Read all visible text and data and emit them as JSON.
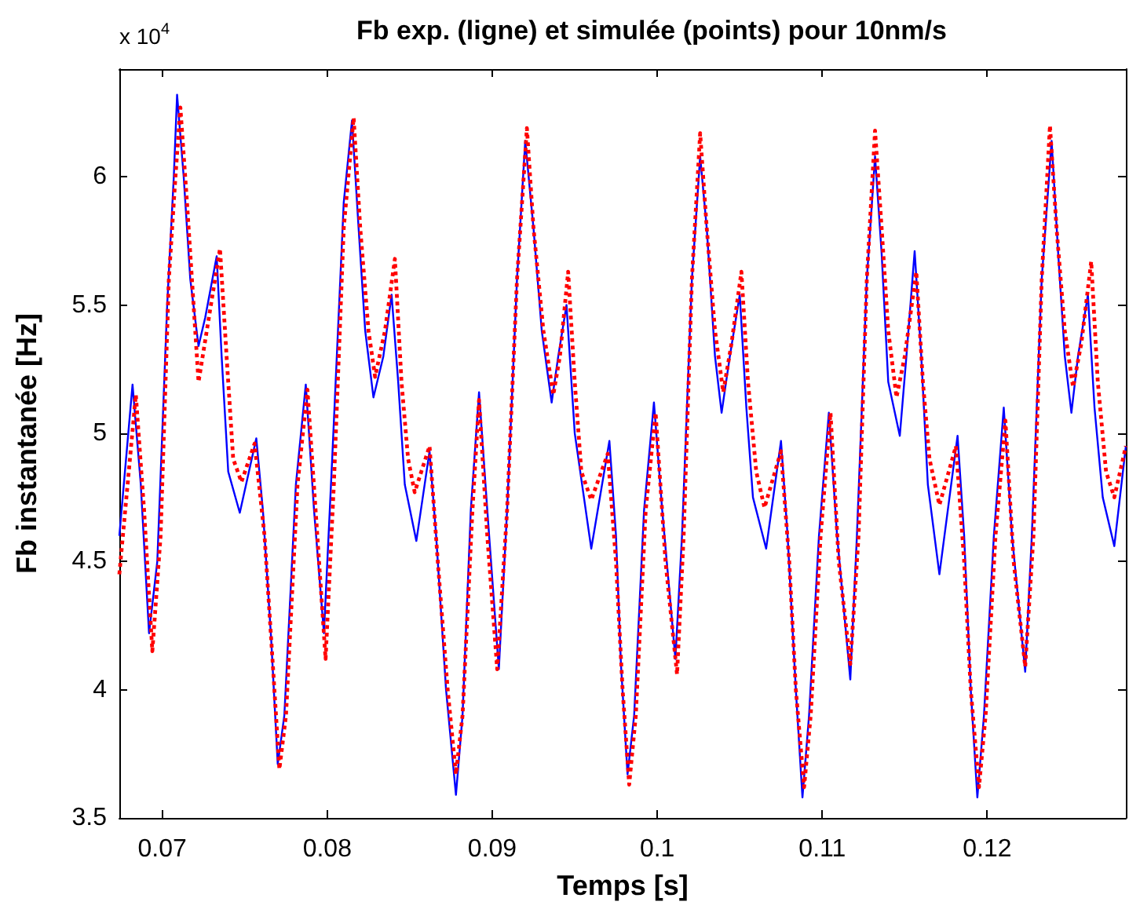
{
  "chart_data": {
    "type": "line",
    "title": "Fb exp. (ligne) et simulée (points) pour 10nm/s",
    "xlabel": "Temps [s]",
    "ylabel": "Fb instantanée [Hz]",
    "annotations": [
      "x 10$^{4}$"
    ],
    "xlim": [
      0.0674,
      0.1284
    ],
    "xticks": [
      0.07,
      0.08,
      0.09,
      0.1,
      0.11,
      0.12
    ],
    "ylim": [
      3.5,
      6.42
    ],
    "yticks": [
      3.5,
      4,
      4.5,
      5,
      5.5,
      6
    ],
    "grid": false,
    "legend": false,
    "marker": "none",
    "series": [
      {
        "color": "#0000ff",
        "line_style": "solid",
        "x": [
          0.0674,
          0.0682,
          0.0687,
          0.0692,
          0.0697,
          0.0703,
          0.0707,
          0.0709,
          0.0713,
          0.0717,
          0.0722,
          0.0726,
          0.0733,
          0.0736,
          0.074,
          0.0747,
          0.0757,
          0.0761,
          0.0766,
          0.077,
          0.0774,
          0.0781,
          0.0787,
          0.0792,
          0.0798,
          0.0803,
          0.081,
          0.0815,
          0.0819,
          0.0823,
          0.0828,
          0.0834,
          0.0839,
          0.0843,
          0.0847,
          0.0854,
          0.0862,
          0.0866,
          0.0872,
          0.0878,
          0.0882,
          0.0887,
          0.0892,
          0.0897,
          0.0904,
          0.0909,
          0.0915,
          0.092,
          0.0925,
          0.093,
          0.0936,
          0.094,
          0.0945,
          0.095,
          0.096,
          0.0971,
          0.0975,
          0.0978,
          0.0982,
          0.0986,
          0.0992,
          0.0998,
          0.1003,
          0.1011,
          0.1015,
          0.1021,
          0.1026,
          0.103,
          0.1035,
          0.1039,
          0.1044,
          0.105,
          0.1054,
          0.1058,
          0.1066,
          0.1075,
          0.1079,
          0.1084,
          0.1088,
          0.1092,
          0.1098,
          0.1104,
          0.1109,
          0.1117,
          0.1121,
          0.1127,
          0.1132,
          0.1136,
          0.114,
          0.1147,
          0.1151,
          0.1156,
          0.116,
          0.1164,
          0.1171,
          0.1182,
          0.1186,
          0.119,
          0.1194,
          0.1198,
          0.1204,
          0.121,
          0.1215,
          0.1223,
          0.1227,
          0.1233,
          0.1239,
          0.1243,
          0.1247,
          0.1251,
          0.1255,
          0.1261,
          0.1265,
          0.127,
          0.1277,
          0.1284
        ],
        "values": [
          4.6,
          5.19,
          4.8,
          4.22,
          4.5,
          5.5,
          6.0,
          6.32,
          6.0,
          5.6,
          5.34,
          5.45,
          5.69,
          5.3,
          4.85,
          4.69,
          4.98,
          4.7,
          4.2,
          3.71,
          3.9,
          4.8,
          5.19,
          4.7,
          4.22,
          4.9,
          5.9,
          6.22,
          5.8,
          5.4,
          5.14,
          5.3,
          5.54,
          5.2,
          4.8,
          4.58,
          4.93,
          4.6,
          4.0,
          3.59,
          3.9,
          4.7,
          5.16,
          4.7,
          4.08,
          4.7,
          5.6,
          6.14,
          5.8,
          5.4,
          5.12,
          5.3,
          5.5,
          5.0,
          4.55,
          4.97,
          4.6,
          4.1,
          3.67,
          3.9,
          4.7,
          5.12,
          4.7,
          4.12,
          4.6,
          5.6,
          6.08,
          5.8,
          5.3,
          5.08,
          5.3,
          5.54,
          5.1,
          4.75,
          4.55,
          4.97,
          4.6,
          4.0,
          3.58,
          3.9,
          4.6,
          5.08,
          4.6,
          4.04,
          4.6,
          5.6,
          6.08,
          5.7,
          5.2,
          4.99,
          5.3,
          5.71,
          5.3,
          4.8,
          4.45,
          4.99,
          4.6,
          4.0,
          3.58,
          3.9,
          4.6,
          5.1,
          4.6,
          4.07,
          4.6,
          5.6,
          6.14,
          5.7,
          5.3,
          5.08,
          5.3,
          5.54,
          5.1,
          4.75,
          4.56,
          4.95
        ]
      },
      {
        "color": "#ff0000",
        "line_style": "dotted",
        "x": [
          0.0674,
          0.0684,
          0.0689,
          0.0694,
          0.0699,
          0.0704,
          0.0708,
          0.0711,
          0.0715,
          0.0719,
          0.0722,
          0.0727,
          0.0735,
          0.0739,
          0.0743,
          0.0748,
          0.0756,
          0.0762,
          0.0767,
          0.0771,
          0.0775,
          0.0782,
          0.0788,
          0.0794,
          0.0799,
          0.0804,
          0.081,
          0.0816,
          0.082,
          0.0825,
          0.0829,
          0.0835,
          0.0841,
          0.0845,
          0.0849,
          0.0853,
          0.0862,
          0.0867,
          0.0873,
          0.0878,
          0.0882,
          0.0888,
          0.0892,
          0.0897,
          0.0903,
          0.0909,
          0.0915,
          0.0921,
          0.0925,
          0.0931,
          0.0937,
          0.0941,
          0.0946,
          0.095,
          0.0954,
          0.096,
          0.097,
          0.0975,
          0.0979,
          0.0983,
          0.0987,
          0.0993,
          0.0999,
          0.1005,
          0.1012,
          0.1016,
          0.1021,
          0.1026,
          0.103,
          0.1035,
          0.104,
          0.1045,
          0.1051,
          0.1055,
          0.106,
          0.1065,
          0.1075,
          0.108,
          0.1084,
          0.1089,
          0.1093,
          0.1099,
          0.1105,
          0.111,
          0.1117,
          0.1122,
          0.1127,
          0.1132,
          0.1136,
          0.114,
          0.1145,
          0.115,
          0.1157,
          0.1161,
          0.1165,
          0.1171,
          0.1181,
          0.1186,
          0.119,
          0.1195,
          0.1199,
          0.1205,
          0.1211,
          0.1216,
          0.1223,
          0.1228,
          0.1233,
          0.1238,
          0.1242,
          0.1247,
          0.1252,
          0.1257,
          0.1263,
          0.1267,
          0.1272,
          0.1277,
          0.1284
        ],
        "values": [
          4.45,
          5.15,
          4.7,
          4.15,
          4.6,
          5.6,
          6.0,
          6.27,
          5.9,
          5.5,
          5.2,
          5.4,
          5.72,
          5.3,
          4.9,
          4.81,
          4.96,
          4.6,
          4.1,
          3.69,
          3.9,
          4.8,
          5.17,
          4.6,
          4.12,
          4.8,
          5.8,
          6.23,
          5.8,
          5.4,
          5.22,
          5.4,
          5.68,
          5.2,
          4.9,
          4.77,
          4.95,
          4.5,
          4.0,
          3.67,
          3.9,
          4.7,
          5.13,
          4.6,
          4.08,
          4.7,
          5.6,
          6.19,
          5.8,
          5.4,
          5.15,
          5.3,
          5.63,
          5.2,
          4.85,
          4.74,
          4.92,
          4.5,
          4.0,
          3.63,
          3.9,
          4.7,
          5.08,
          4.5,
          4.06,
          4.6,
          5.6,
          6.17,
          5.8,
          5.4,
          5.16,
          5.35,
          5.63,
          5.2,
          4.85,
          4.71,
          4.93,
          4.5,
          4.0,
          3.62,
          3.9,
          4.6,
          5.08,
          4.5,
          4.1,
          4.6,
          5.6,
          6.18,
          5.8,
          5.4,
          5.14,
          5.3,
          5.63,
          5.2,
          4.9,
          4.72,
          4.95,
          4.5,
          4.0,
          3.62,
          3.9,
          4.6,
          5.05,
          4.5,
          4.09,
          4.6,
          5.6,
          6.2,
          5.8,
          5.4,
          5.18,
          5.35,
          5.67,
          5.2,
          4.85,
          4.75,
          4.95
        ]
      }
    ]
  }
}
